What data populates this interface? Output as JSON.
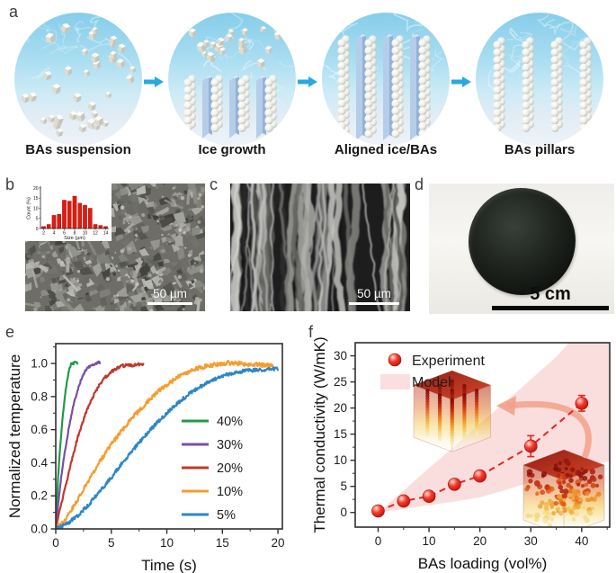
{
  "panels": {
    "a": {
      "label": "a",
      "arrow_color": "#2aa9e0",
      "stages": [
        {
          "caption": "BAs suspension"
        },
        {
          "caption": "Ice growth"
        },
        {
          "caption": "Aligned ice/BAs"
        },
        {
          "caption": "BAs pillars"
        }
      ]
    },
    "b": {
      "label": "b",
      "scale_bar_label": "50 µm"
    },
    "c": {
      "label": "c",
      "scale_bar_label": "50 µm"
    },
    "d": {
      "label": "d",
      "scale_bar_label": "5 cm"
    },
    "e": {
      "label": "e"
    },
    "f": {
      "label": "f"
    }
  },
  "chart_data": [
    {
      "type": "line",
      "panel": "e",
      "title": "",
      "xlabel": "Time (s)",
      "ylabel": "Normalized temperature",
      "xlim": [
        0,
        20.4
      ],
      "ylim": [
        0,
        1.12
      ],
      "xticks": [
        0,
        5,
        10,
        15,
        20
      ],
      "xtick_labels": [
        "0",
        "5",
        "10",
        "15",
        "20"
      ],
      "yticks": [
        0,
        0.2,
        0.4,
        0.6,
        0.8,
        1.0
      ],
      "ytick_labels": [
        "0.0",
        "0.2",
        "0.4",
        "0.6",
        "0.8",
        "1.0"
      ],
      "x_minor_step": 2.5,
      "y_minor_step": 0.1,
      "grid": false,
      "legend_position": "middle-right",
      "series": [
        {
          "name": "40%",
          "color": "#1f9c49",
          "points": [
            [
              0,
              0
            ],
            [
              0.2,
              0.3
            ],
            [
              0.4,
              0.5
            ],
            [
              0.6,
              0.66
            ],
            [
              0.8,
              0.79
            ],
            [
              1.0,
              0.89
            ],
            [
              1.2,
              0.96
            ],
            [
              1.4,
              1.0
            ],
            [
              1.6,
              1.0
            ],
            [
              1.8,
              1.01
            ],
            [
              2.0,
              1.0
            ]
          ]
        },
        {
          "name": "30%",
          "color": "#7a4fa3",
          "points": [
            [
              0,
              0
            ],
            [
              0.3,
              0.2
            ],
            [
              0.6,
              0.37
            ],
            [
              0.9,
              0.5
            ],
            [
              1.2,
              0.62
            ],
            [
              1.5,
              0.72
            ],
            [
              1.8,
              0.8
            ],
            [
              2.1,
              0.87
            ],
            [
              2.4,
              0.92
            ],
            [
              2.7,
              0.96
            ],
            [
              3.0,
              0.98
            ],
            [
              3.3,
              0.99
            ],
            [
              3.6,
              1.0
            ],
            [
              3.9,
              1.01
            ],
            [
              4.0,
              1.0
            ]
          ]
        },
        {
          "name": "20%",
          "color": "#c0392b",
          "points": [
            [
              0,
              0
            ],
            [
              0.5,
              0.15
            ],
            [
              1,
              0.29
            ],
            [
              1.5,
              0.43
            ],
            [
              2,
              0.56
            ],
            [
              2.5,
              0.66
            ],
            [
              3,
              0.75
            ],
            [
              3.5,
              0.82
            ],
            [
              4,
              0.88
            ],
            [
              4.5,
              0.92
            ],
            [
              5,
              0.95
            ],
            [
              5.5,
              0.97
            ],
            [
              6,
              0.985
            ],
            [
              6.5,
              0.99
            ],
            [
              7,
              0.99
            ],
            [
              7.5,
              0.995
            ],
            [
              7.9,
              1.0
            ]
          ]
        },
        {
          "name": "10%",
          "color": "#f59d2f",
          "points": [
            [
              0,
              0
            ],
            [
              1,
              0.07
            ],
            [
              2,
              0.18
            ],
            [
              3,
              0.3
            ],
            [
              4,
              0.41
            ],
            [
              5,
              0.51
            ],
            [
              6,
              0.6
            ],
            [
              7,
              0.68
            ],
            [
              8,
              0.75
            ],
            [
              9,
              0.82
            ],
            [
              10,
              0.87
            ],
            [
              11,
              0.92
            ],
            [
              12,
              0.95
            ],
            [
              13,
              0.975
            ],
            [
              14,
              0.99
            ],
            [
              15,
              1.0
            ],
            [
              16,
              1.005
            ],
            [
              17,
              0.995
            ],
            [
              18,
              0.995
            ],
            [
              19,
              0.99
            ],
            [
              19.6,
              0.985
            ]
          ]
        },
        {
          "name": "5%",
          "color": "#2e86c8",
          "points": [
            [
              0,
              0
            ],
            [
              1,
              0.03
            ],
            [
              2,
              0.08
            ],
            [
              3,
              0.15
            ],
            [
              4,
              0.23
            ],
            [
              5,
              0.31
            ],
            [
              6,
              0.4
            ],
            [
              7,
              0.48
            ],
            [
              8,
              0.56
            ],
            [
              9,
              0.635
            ],
            [
              10,
              0.7
            ],
            [
              11,
              0.76
            ],
            [
              12,
              0.815
            ],
            [
              13,
              0.86
            ],
            [
              14,
              0.895
            ],
            [
              15,
              0.925
            ],
            [
              16,
              0.945
            ],
            [
              17,
              0.955
            ],
            [
              18,
              0.96
            ],
            [
              19,
              0.965
            ],
            [
              20,
              0.965
            ]
          ]
        }
      ]
    },
    {
      "type": "scatter",
      "panel": "f",
      "xlabel": "BAs loading (vol%)",
      "ylabel": "Thermal conductivity (W/mK)",
      "xlim": [
        -4.5,
        45.5
      ],
      "ylim": [
        -2.8,
        32.5
      ],
      "xticks": [
        0,
        10,
        20,
        30,
        40
      ],
      "xtick_labels": [
        "0",
        "10",
        "20",
        "30",
        "40"
      ],
      "yticks": [
        0,
        5,
        10,
        15,
        20,
        25,
        30
      ],
      "ytick_labels": [
        "0",
        "5",
        "10",
        "15",
        "20",
        "25",
        "30"
      ],
      "x_minor_step": 5,
      "y_minor_step": 2.5,
      "grid": false,
      "legend": [
        {
          "label": "Experiment",
          "marker": "sphere",
          "color": "#e8231f"
        },
        {
          "label": "Model",
          "marker": "band",
          "color": "#fbdfe0"
        }
      ],
      "experiment": {
        "x": [
          0,
          5,
          10,
          15,
          20,
          30,
          40
        ],
        "y": [
          0.3,
          2.2,
          3.1,
          5.4,
          7.0,
          12.7,
          20.9
        ],
        "yerr": [
          0.3,
          0.35,
          0.4,
          0.9,
          0.6,
          2.0,
          1.5
        ]
      },
      "model_band": {
        "upper": [
          [
            0,
            0
          ],
          [
            5,
            4.2
          ],
          [
            10,
            8.5
          ],
          [
            15,
            12.7
          ],
          [
            20,
            17.0
          ],
          [
            25,
            21.2
          ],
          [
            30,
            25.5
          ],
          [
            35,
            29.8
          ],
          [
            37.5,
            32.5
          ],
          [
            45.5,
            32.5
          ]
        ],
        "lower": [
          [
            0,
            0
          ],
          [
            5,
            0.7
          ],
          [
            10,
            1.4
          ],
          [
            15,
            2.1
          ],
          [
            20,
            2.9
          ],
          [
            25,
            4.3
          ],
          [
            30,
            5.8
          ],
          [
            35,
            7.5
          ],
          [
            40,
            8.7
          ],
          [
            45.5,
            9.8
          ]
        ]
      },
      "line_style": "dashed",
      "point_color": "#e8231f",
      "band_color": "#f9d8d8"
    },
    {
      "type": "bar",
      "panel": "b-inset",
      "xlabel": "Size (µm)",
      "ylabel": "Count (%)",
      "categories": [
        2,
        3,
        4,
        5,
        6,
        7,
        8,
        9,
        10,
        11,
        12,
        13,
        14
      ],
      "values": [
        1,
        2,
        6.5,
        7,
        14,
        13.5,
        16,
        12.5,
        11.5,
        10,
        2,
        1.5,
        1
      ],
      "xticks": [
        2,
        4,
        6,
        8,
        10,
        12,
        14
      ],
      "yticks": [
        0,
        5,
        10,
        15,
        20
      ],
      "ylim": [
        0,
        20
      ],
      "bar_color": "#e01b10"
    }
  ]
}
